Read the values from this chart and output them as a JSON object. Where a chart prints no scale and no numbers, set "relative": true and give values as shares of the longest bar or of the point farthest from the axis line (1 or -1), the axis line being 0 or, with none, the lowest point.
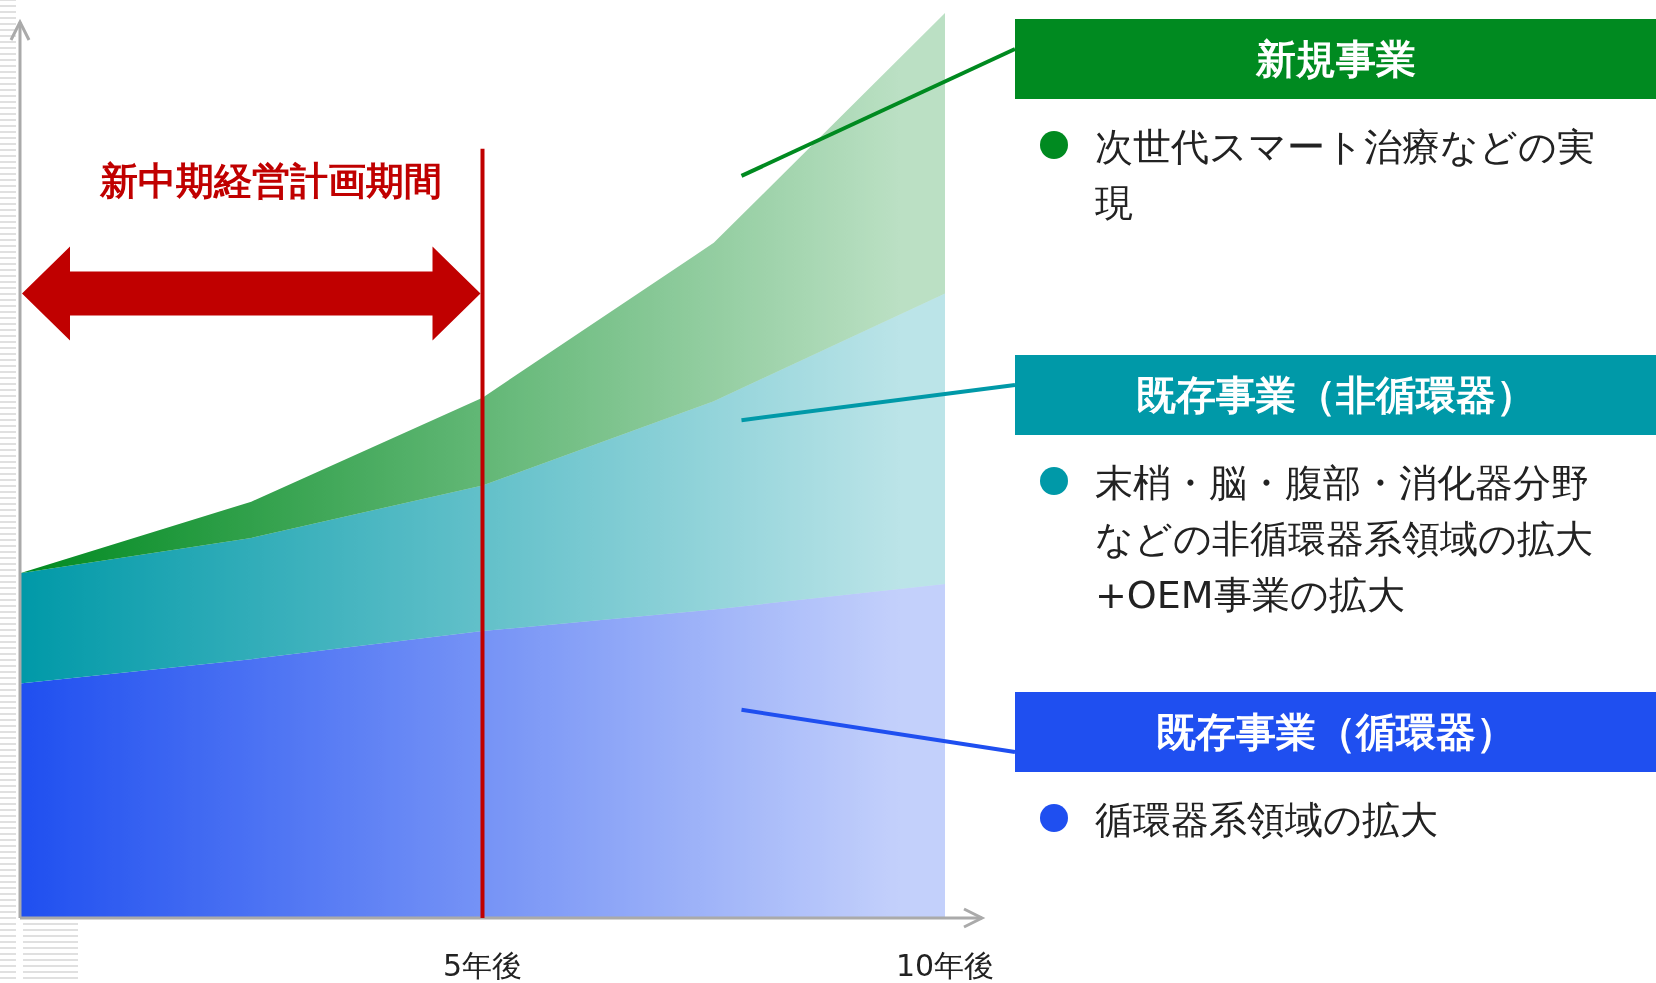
{
  "chart_data": {
    "type": "area",
    "stacked": true,
    "relative": true,
    "x": [
      0,
      2.5,
      5,
      7.5,
      10
    ],
    "xlim": [
      0,
      10.4
    ],
    "xticks": [
      {
        "value": 5,
        "label": "5年後"
      },
      {
        "value": 10,
        "label": "10年後"
      }
    ],
    "series": [
      {
        "name": "既存事業（循環器）",
        "color": "#1f4ff0",
        "values": [
          0.259,
          0.286,
          0.317,
          0.341,
          0.369
        ]
      },
      {
        "name": "既存事業（非循環器）",
        "color": "#0099a8",
        "values": [
          0.122,
          0.134,
          0.161,
          0.23,
          0.321
        ]
      },
      {
        "name": "新規事業",
        "color": "#008a20",
        "values": [
          0,
          0.04,
          0.097,
          0.175,
          0.31
        ]
      }
    ],
    "ref_lines": [
      {
        "axis": "x",
        "value": 5,
        "color": "#c00000"
      }
    ],
    "annotations": [
      "循環器系領域の拡大",
      "末梢・脳・腹部・消化器分野などの非循環器系領域の拡大+OEM事業の拡大",
      "次世代スマート治療などの実現",
      "新中期経営計画期間"
    ]
  }
}
